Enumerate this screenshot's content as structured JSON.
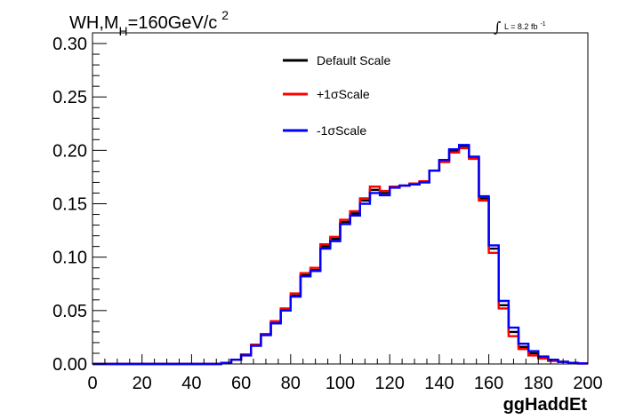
{
  "chart_data": {
    "type": "histogram",
    "title": {
      "main": "WH,M",
      "subscript": "H",
      "rest": "=160GeV/c",
      "superscript": "2"
    },
    "luminosity": {
      "prefix": "L = 8.2 fb",
      "superscript": "-1"
    },
    "xlabel": "ggHaddEt",
    "ylabel": "",
    "xlim": [
      0,
      200
    ],
    "ylim": [
      0,
      0.31
    ],
    "x_ticks": [
      "0",
      "20",
      "40",
      "60",
      "80",
      "100",
      "120",
      "140",
      "160",
      "180",
      "200"
    ],
    "y_ticks": [
      "0.00",
      "0.05",
      "0.10",
      "0.15",
      "0.20",
      "0.25",
      "0.30"
    ],
    "grid": false,
    "legend_position": "top-center",
    "bin_edges": [
      0,
      4,
      8,
      12,
      16,
      20,
      24,
      28,
      32,
      36,
      40,
      44,
      48,
      52,
      56,
      60,
      64,
      68,
      72,
      76,
      80,
      84,
      88,
      92,
      96,
      100,
      104,
      108,
      112,
      116,
      120,
      124,
      128,
      132,
      136,
      140,
      144,
      148,
      152,
      156,
      160,
      164,
      168,
      172,
      176,
      180,
      184,
      188,
      192,
      196,
      200
    ],
    "series": [
      {
        "name": "Default Scale",
        "color": "#000000",
        "values": [
          0,
          0,
          0,
          0,
          0,
          0,
          0,
          0,
          0,
          0,
          0,
          0,
          0,
          0.001,
          0.004,
          0.009,
          0.018,
          0.028,
          0.039,
          0.051,
          0.064,
          0.083,
          0.088,
          0.11,
          0.117,
          0.133,
          0.141,
          0.153,
          0.163,
          0.16,
          0.166,
          0.167,
          0.168,
          0.17,
          0.181,
          0.19,
          0.2,
          0.204,
          0.194,
          0.155,
          0.108,
          0.055,
          0.03,
          0.016,
          0.01,
          0.006,
          0.003,
          0.002,
          0.001,
          0.0005
        ]
      },
      {
        "name": "+1σScale",
        "color": "#ff0000",
        "values": [
          0,
          0,
          0,
          0,
          0,
          0,
          0,
          0,
          0,
          0,
          0,
          0,
          0,
          0.001,
          0.004,
          0.009,
          0.018,
          0.028,
          0.04,
          0.052,
          0.066,
          0.085,
          0.09,
          0.112,
          0.119,
          0.135,
          0.143,
          0.155,
          0.166,
          0.162,
          0.166,
          0.167,
          0.169,
          0.171,
          0.181,
          0.189,
          0.198,
          0.202,
          0.192,
          0.153,
          0.104,
          0.052,
          0.026,
          0.014,
          0.008,
          0.005,
          0.003,
          0.002,
          0.001,
          0.0005
        ]
      },
      {
        "name": "-1σScale",
        "color": "#0000ff",
        "values": [
          0,
          0,
          0,
          0,
          0,
          0,
          0,
          0,
          0,
          0,
          0,
          0,
          0,
          0.001,
          0.004,
          0.008,
          0.017,
          0.027,
          0.038,
          0.05,
          0.063,
          0.082,
          0.087,
          0.108,
          0.115,
          0.131,
          0.139,
          0.15,
          0.16,
          0.158,
          0.165,
          0.167,
          0.168,
          0.17,
          0.181,
          0.191,
          0.201,
          0.205,
          0.194,
          0.157,
          0.111,
          0.059,
          0.034,
          0.019,
          0.012,
          0.007,
          0.004,
          0.002,
          0.001,
          0.0005
        ]
      }
    ]
  }
}
